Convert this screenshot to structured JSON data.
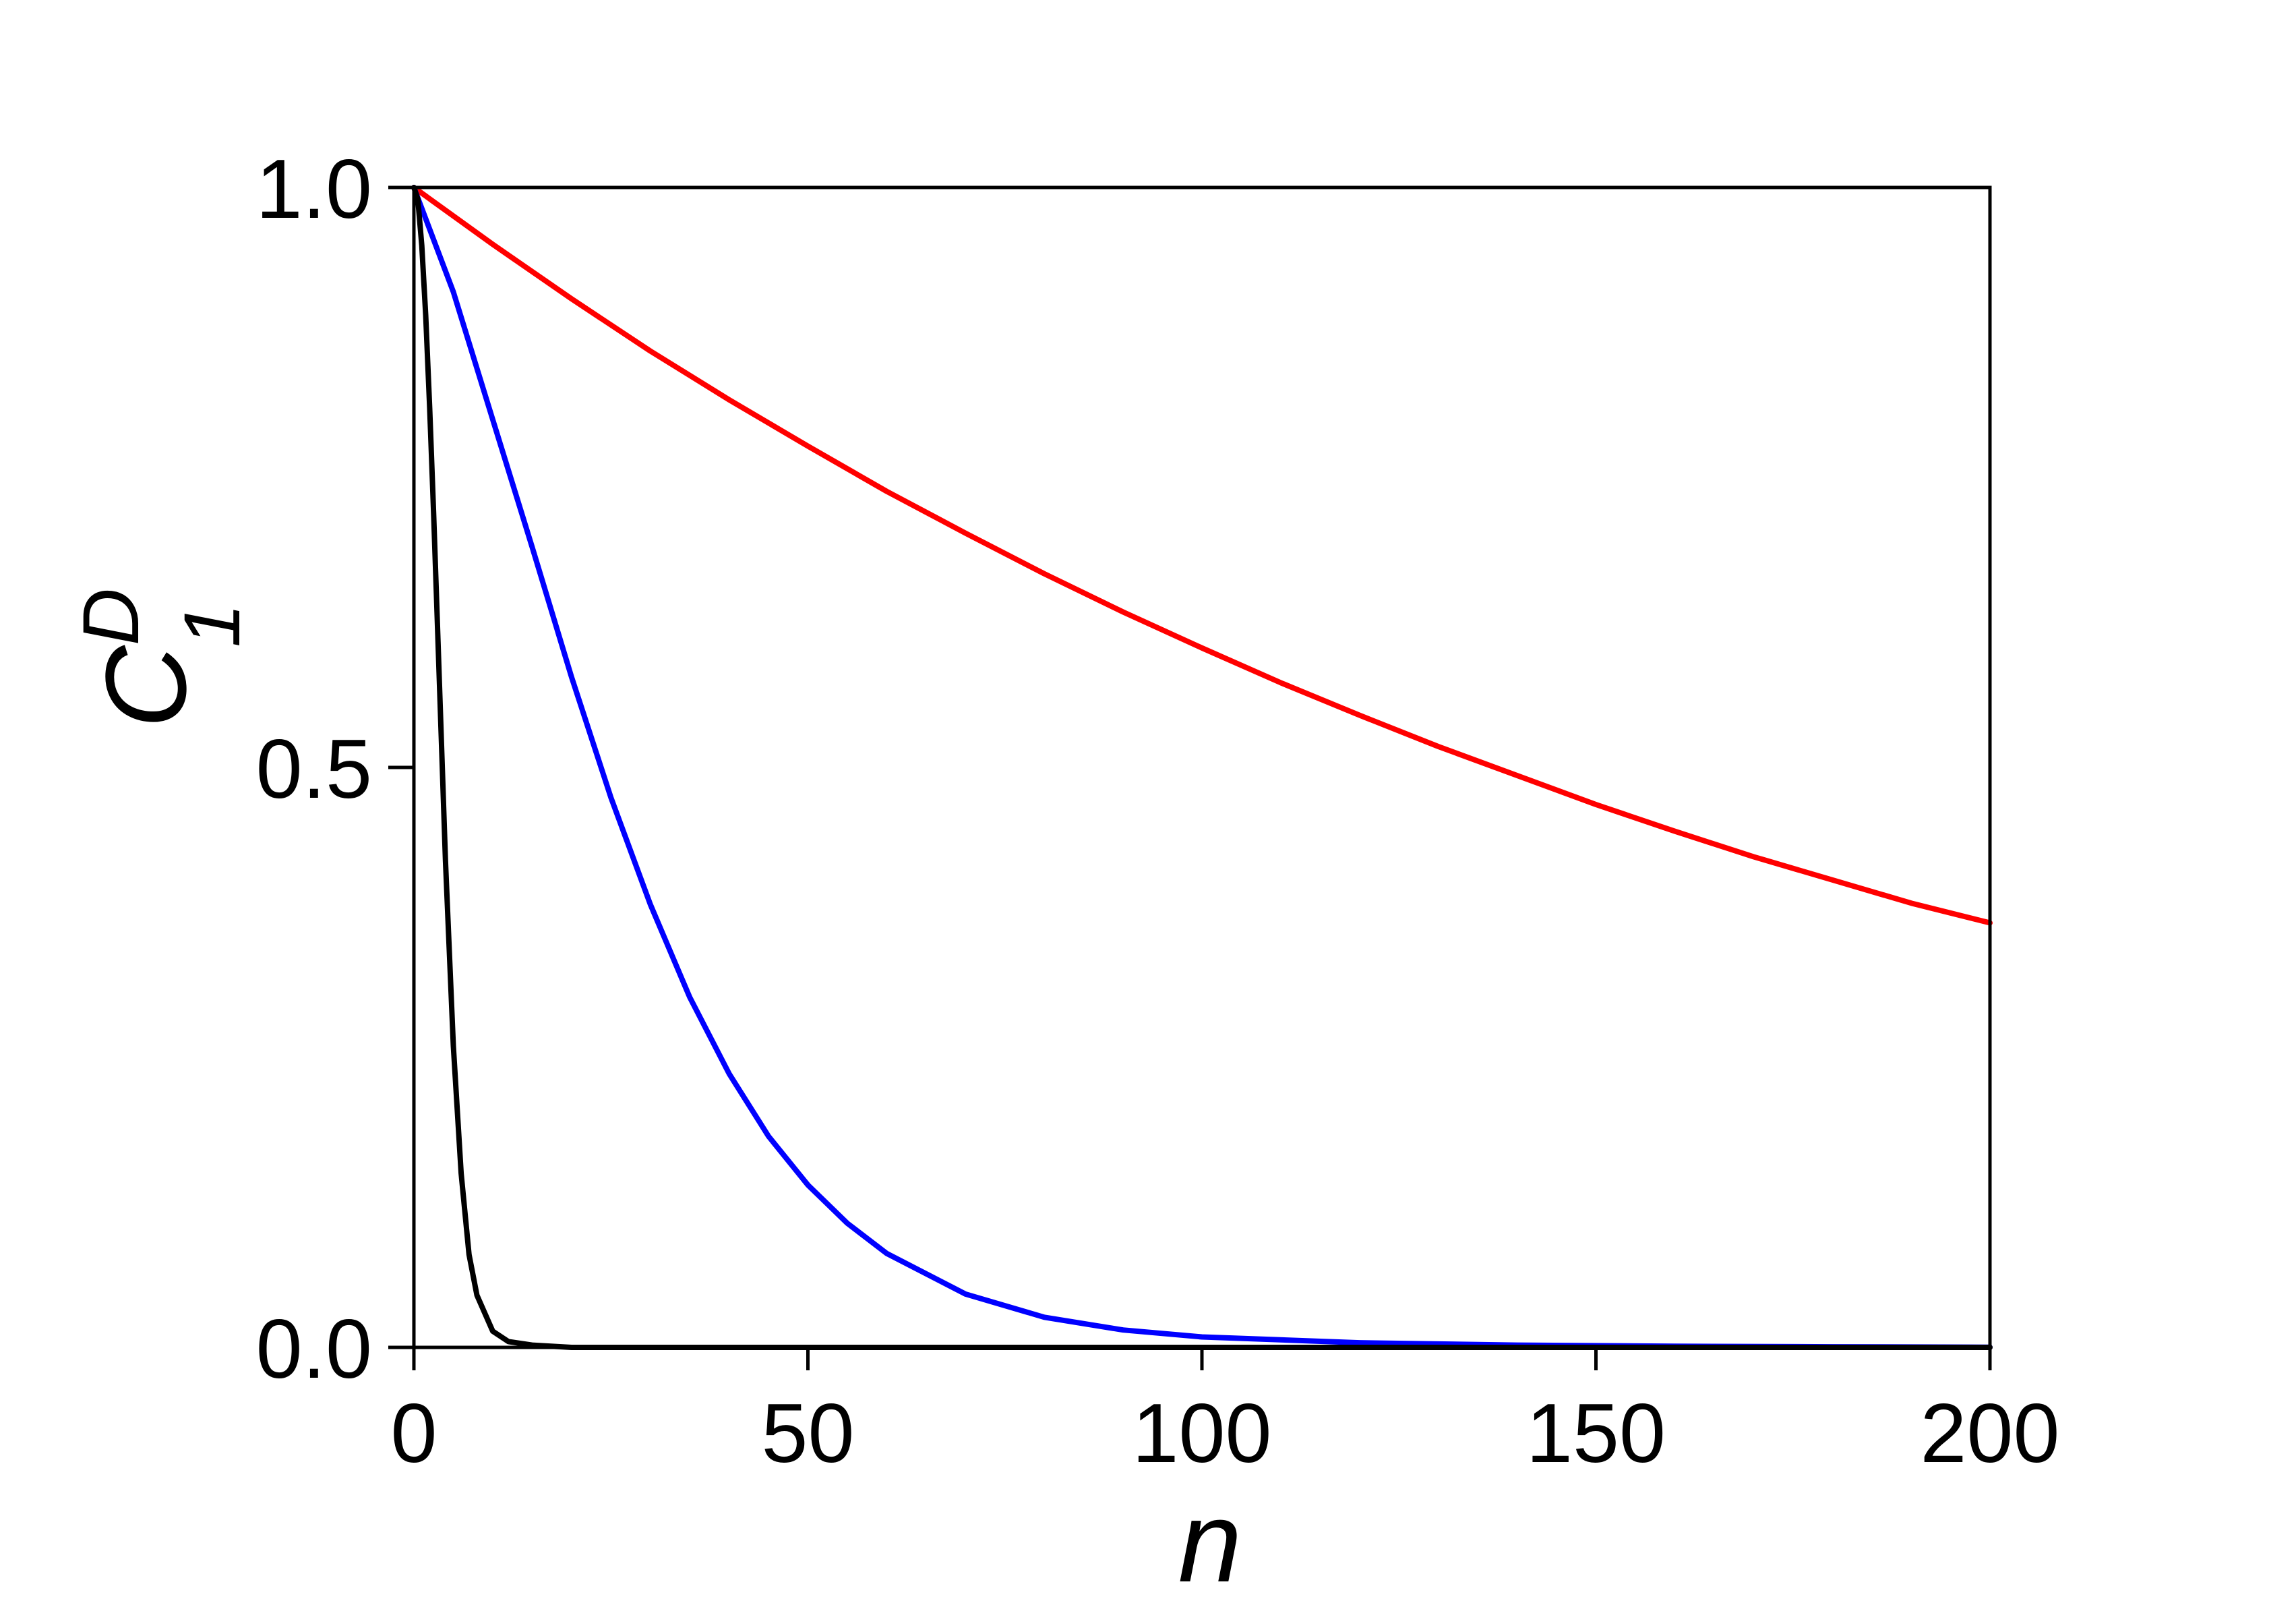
{
  "chart_data": {
    "type": "line",
    "title": "",
    "xlabel": "n",
    "ylabel": {
      "base": "C",
      "subscript": "1",
      "superscript": "D"
    },
    "xlim": [
      0,
      200
    ],
    "ylim": [
      0,
      1
    ],
    "xticks": [
      0,
      50,
      100,
      150,
      200
    ],
    "yticks": [
      0.0,
      0.5,
      1.0
    ],
    "xtick_labels": [
      "0",
      "50",
      "100",
      "150",
      "200"
    ],
    "ytick_labels": [
      "0.0",
      "0.5",
      "1.0"
    ],
    "grid": false,
    "legend": "none",
    "series": [
      {
        "color": "#ff0000",
        "x": [
          0,
          10,
          20,
          30,
          40,
          50,
          60,
          70,
          80,
          90,
          100,
          110,
          120,
          130,
          140,
          150,
          160,
          170,
          180,
          190,
          200
        ],
        "y": [
          1.0,
          0.951,
          0.904,
          0.859,
          0.817,
          0.777,
          0.738,
          0.702,
          0.667,
          0.634,
          0.603,
          0.573,
          0.545,
          0.518,
          0.493,
          0.468,
          0.445,
          0.423,
          0.403,
          0.383,
          0.366
        ]
      },
      {
        "color": "#0000ff",
        "x": [
          0,
          5,
          10,
          15,
          20,
          25,
          30,
          35,
          40,
          45,
          50,
          55,
          60,
          70,
          80,
          90,
          100,
          120,
          140,
          160,
          180,
          200
        ],
        "y": [
          1.0,
          0.91,
          0.8,
          0.69,
          0.578,
          0.474,
          0.382,
          0.302,
          0.236,
          0.182,
          0.14,
          0.107,
          0.081,
          0.046,
          0.026,
          0.015,
          0.009,
          0.004,
          0.002,
          0.001,
          0.0005,
          0.0002
        ]
      },
      {
        "color": "#000000",
        "x": [
          0,
          0.5,
          1,
          1.5,
          2,
          2.5,
          3,
          4,
          5,
          6,
          7,
          8,
          10,
          12,
          15,
          20,
          30,
          50,
          100,
          150,
          200
        ],
        "y": [
          1.0,
          0.99,
          0.95,
          0.89,
          0.81,
          0.72,
          0.62,
          0.42,
          0.26,
          0.15,
          0.08,
          0.045,
          0.014,
          0.005,
          0.002,
          0.0,
          0.0,
          0.0,
          0.0,
          0.0,
          0.0
        ]
      }
    ]
  }
}
